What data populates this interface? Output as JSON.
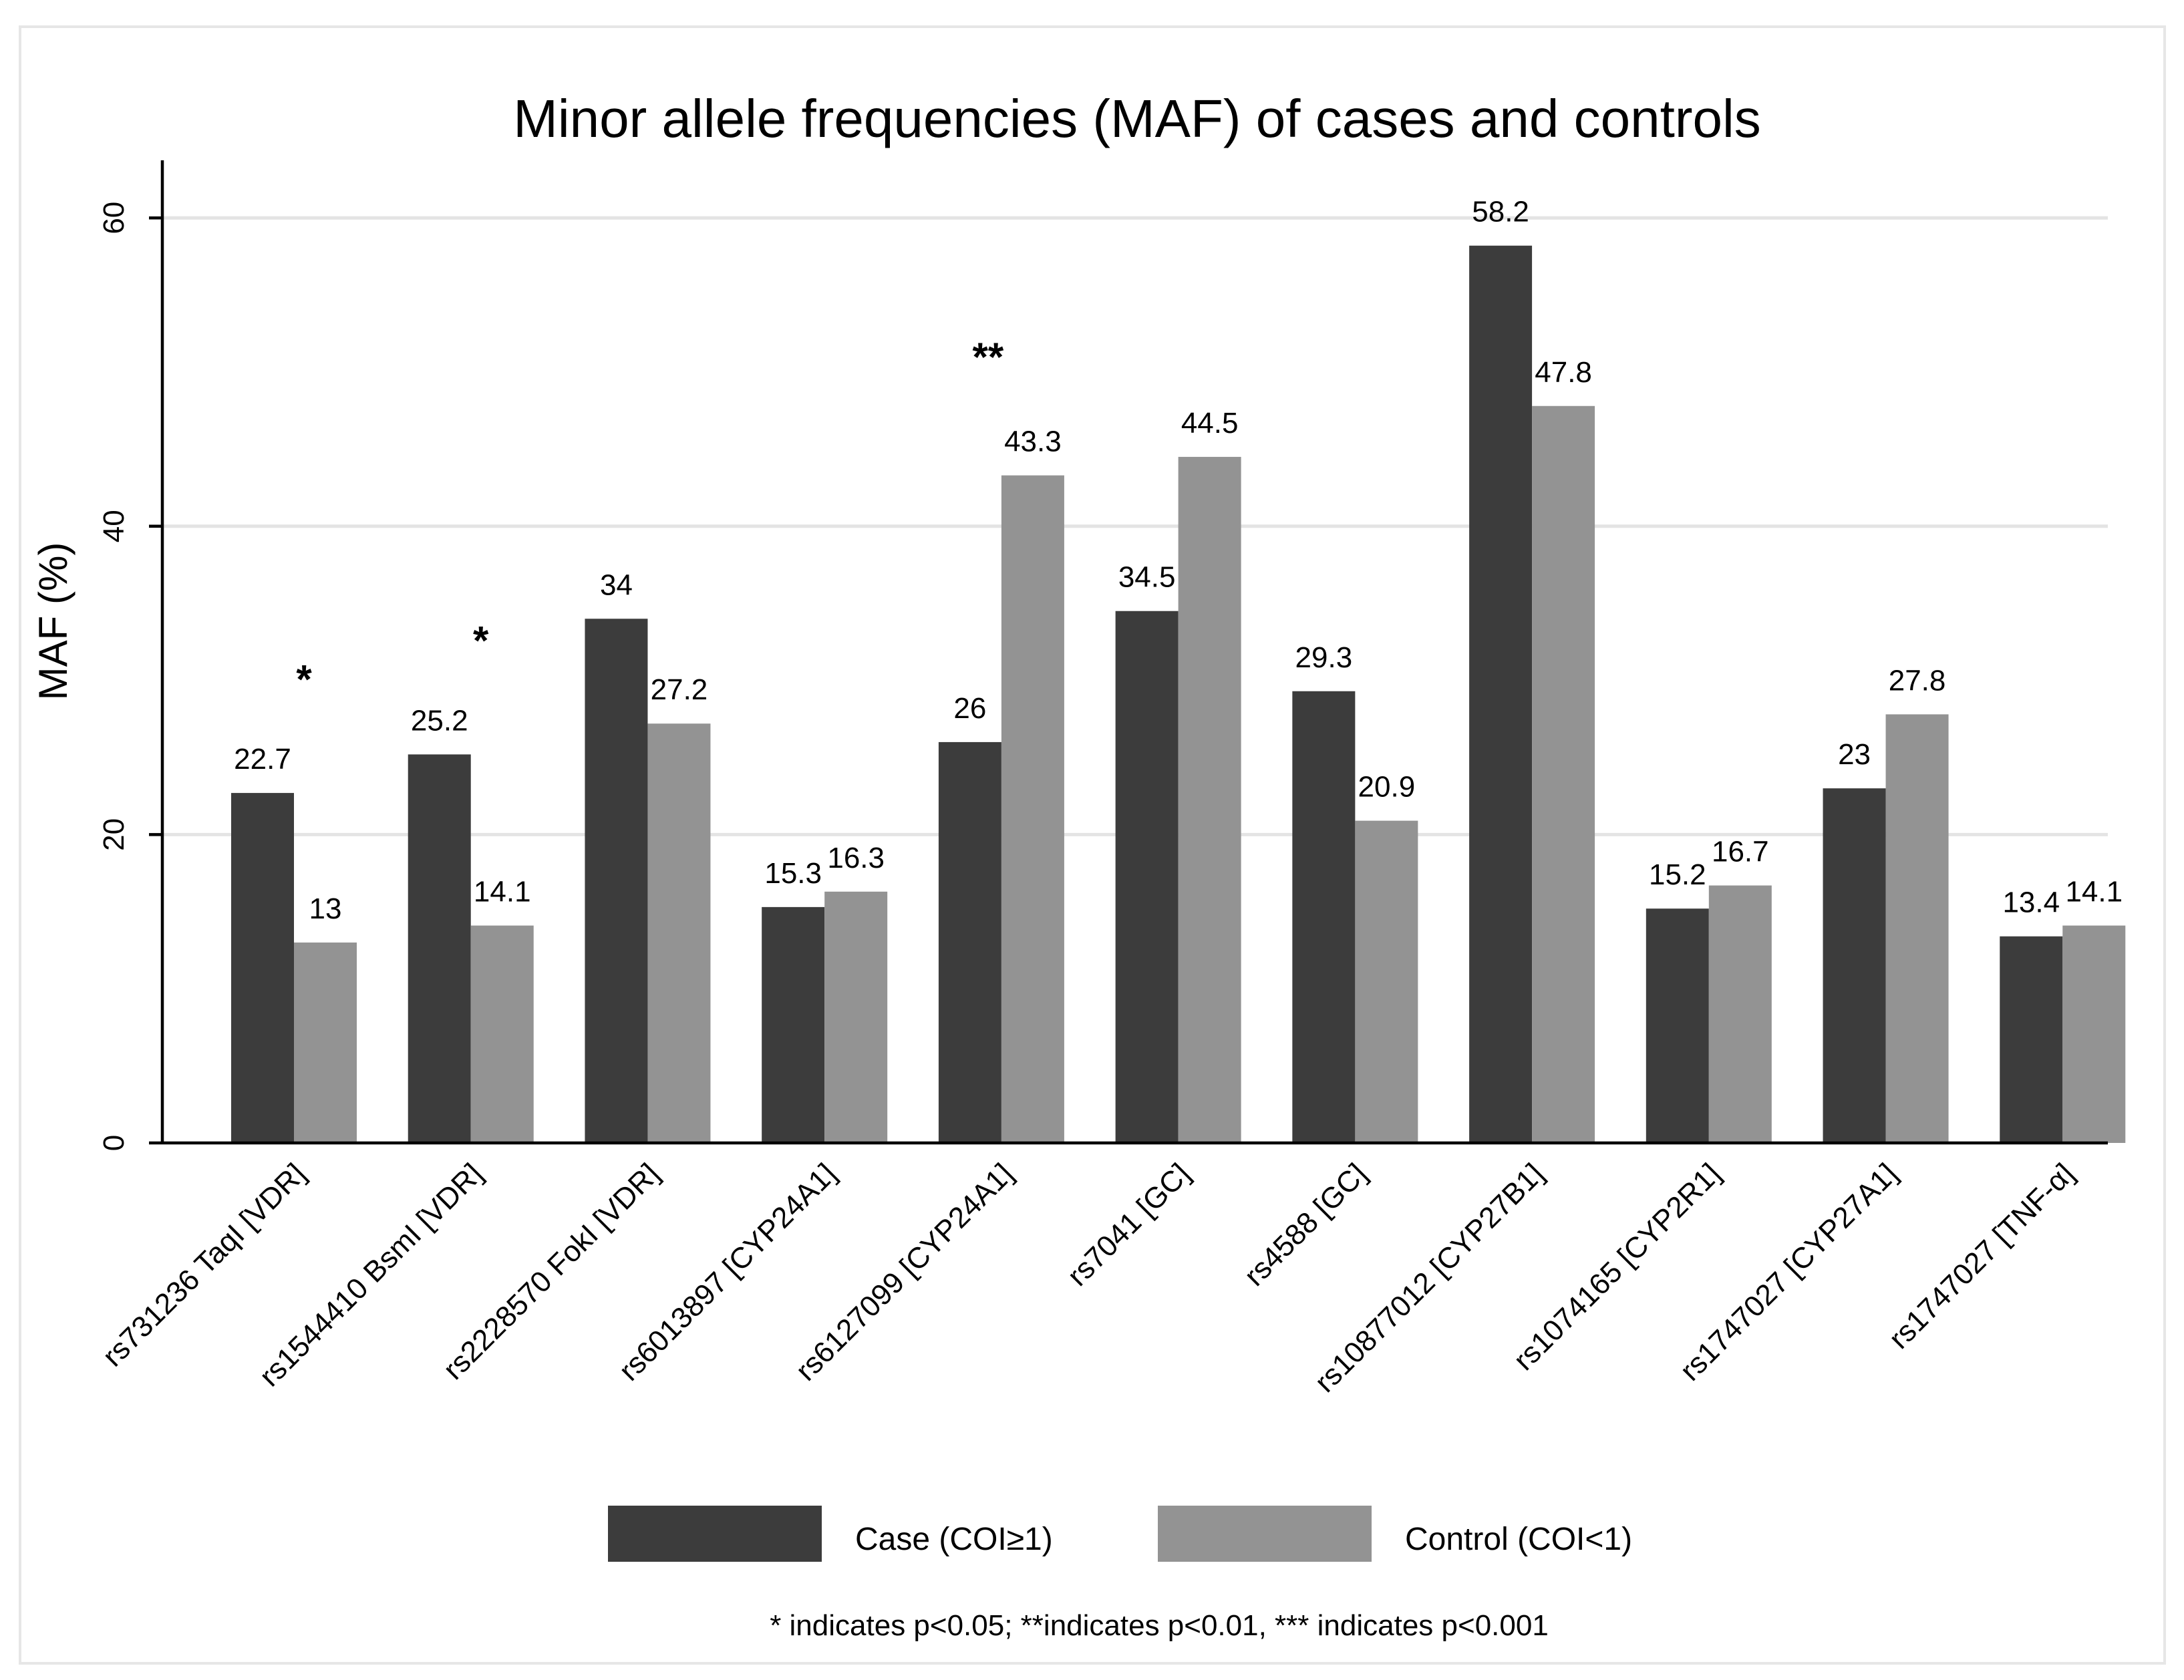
{
  "chart_data": {
    "type": "bar",
    "title": "Minor allele frequencies (MAF) of cases and controls",
    "ylabel": "MAF (%)",
    "xlabel": "",
    "ylim": [
      0,
      63.5
    ],
    "yticks": [
      0,
      20,
      40,
      60
    ],
    "grid": true,
    "categories": [
      "rs731236 TaqI [VDR]",
      "rs1544410 BsmI [VDR]",
      "rs2228570 FokI [VDR]",
      "rs6013897 [CYP24A1]",
      "rs6127099 [CYP24A1]",
      "rs7041 [GC]",
      "rs4588 [GC]",
      "rs10877012 [CYP27B1]",
      "rs1074165 [CYP2R1]",
      "rs1747027 [CYP27A1]",
      "rs1747027 [TNF-α]"
    ],
    "series": [
      {
        "name": "Case (COI≥1)",
        "color": "#3c3c3c",
        "values": [
          22.7,
          25.2,
          34,
          15.3,
          26,
          34.5,
          29.3,
          58.2,
          15.2,
          23,
          13.4
        ],
        "labels": [
          "22.7",
          "25.2",
          "34",
          "15.3",
          "26",
          "34.5",
          "29.3",
          "58.2",
          "15.2",
          "23",
          "13.4"
        ]
      },
      {
        "name": "Control (COI<1)",
        "color": "#939393",
        "values": [
          13,
          14.1,
          27.2,
          16.3,
          43.3,
          44.5,
          20.9,
          47.8,
          16.7,
          27.8,
          14.1
        ],
        "labels": [
          "13",
          "14.1",
          "27.2",
          "16.3",
          "43.3",
          "44.5",
          "20.9",
          "47.8",
          "16.7",
          "27.8",
          "14.1"
        ]
      }
    ],
    "significance": [
      {
        "category_index": 0,
        "mark": "*"
      },
      {
        "category_index": 1,
        "mark": "*"
      },
      {
        "category_index": 4,
        "mark": "**"
      }
    ],
    "legend_placement": "bottom",
    "footnote": "* indicates p<0.05; **indicates p<0.01, *** indicates p<0.001"
  }
}
